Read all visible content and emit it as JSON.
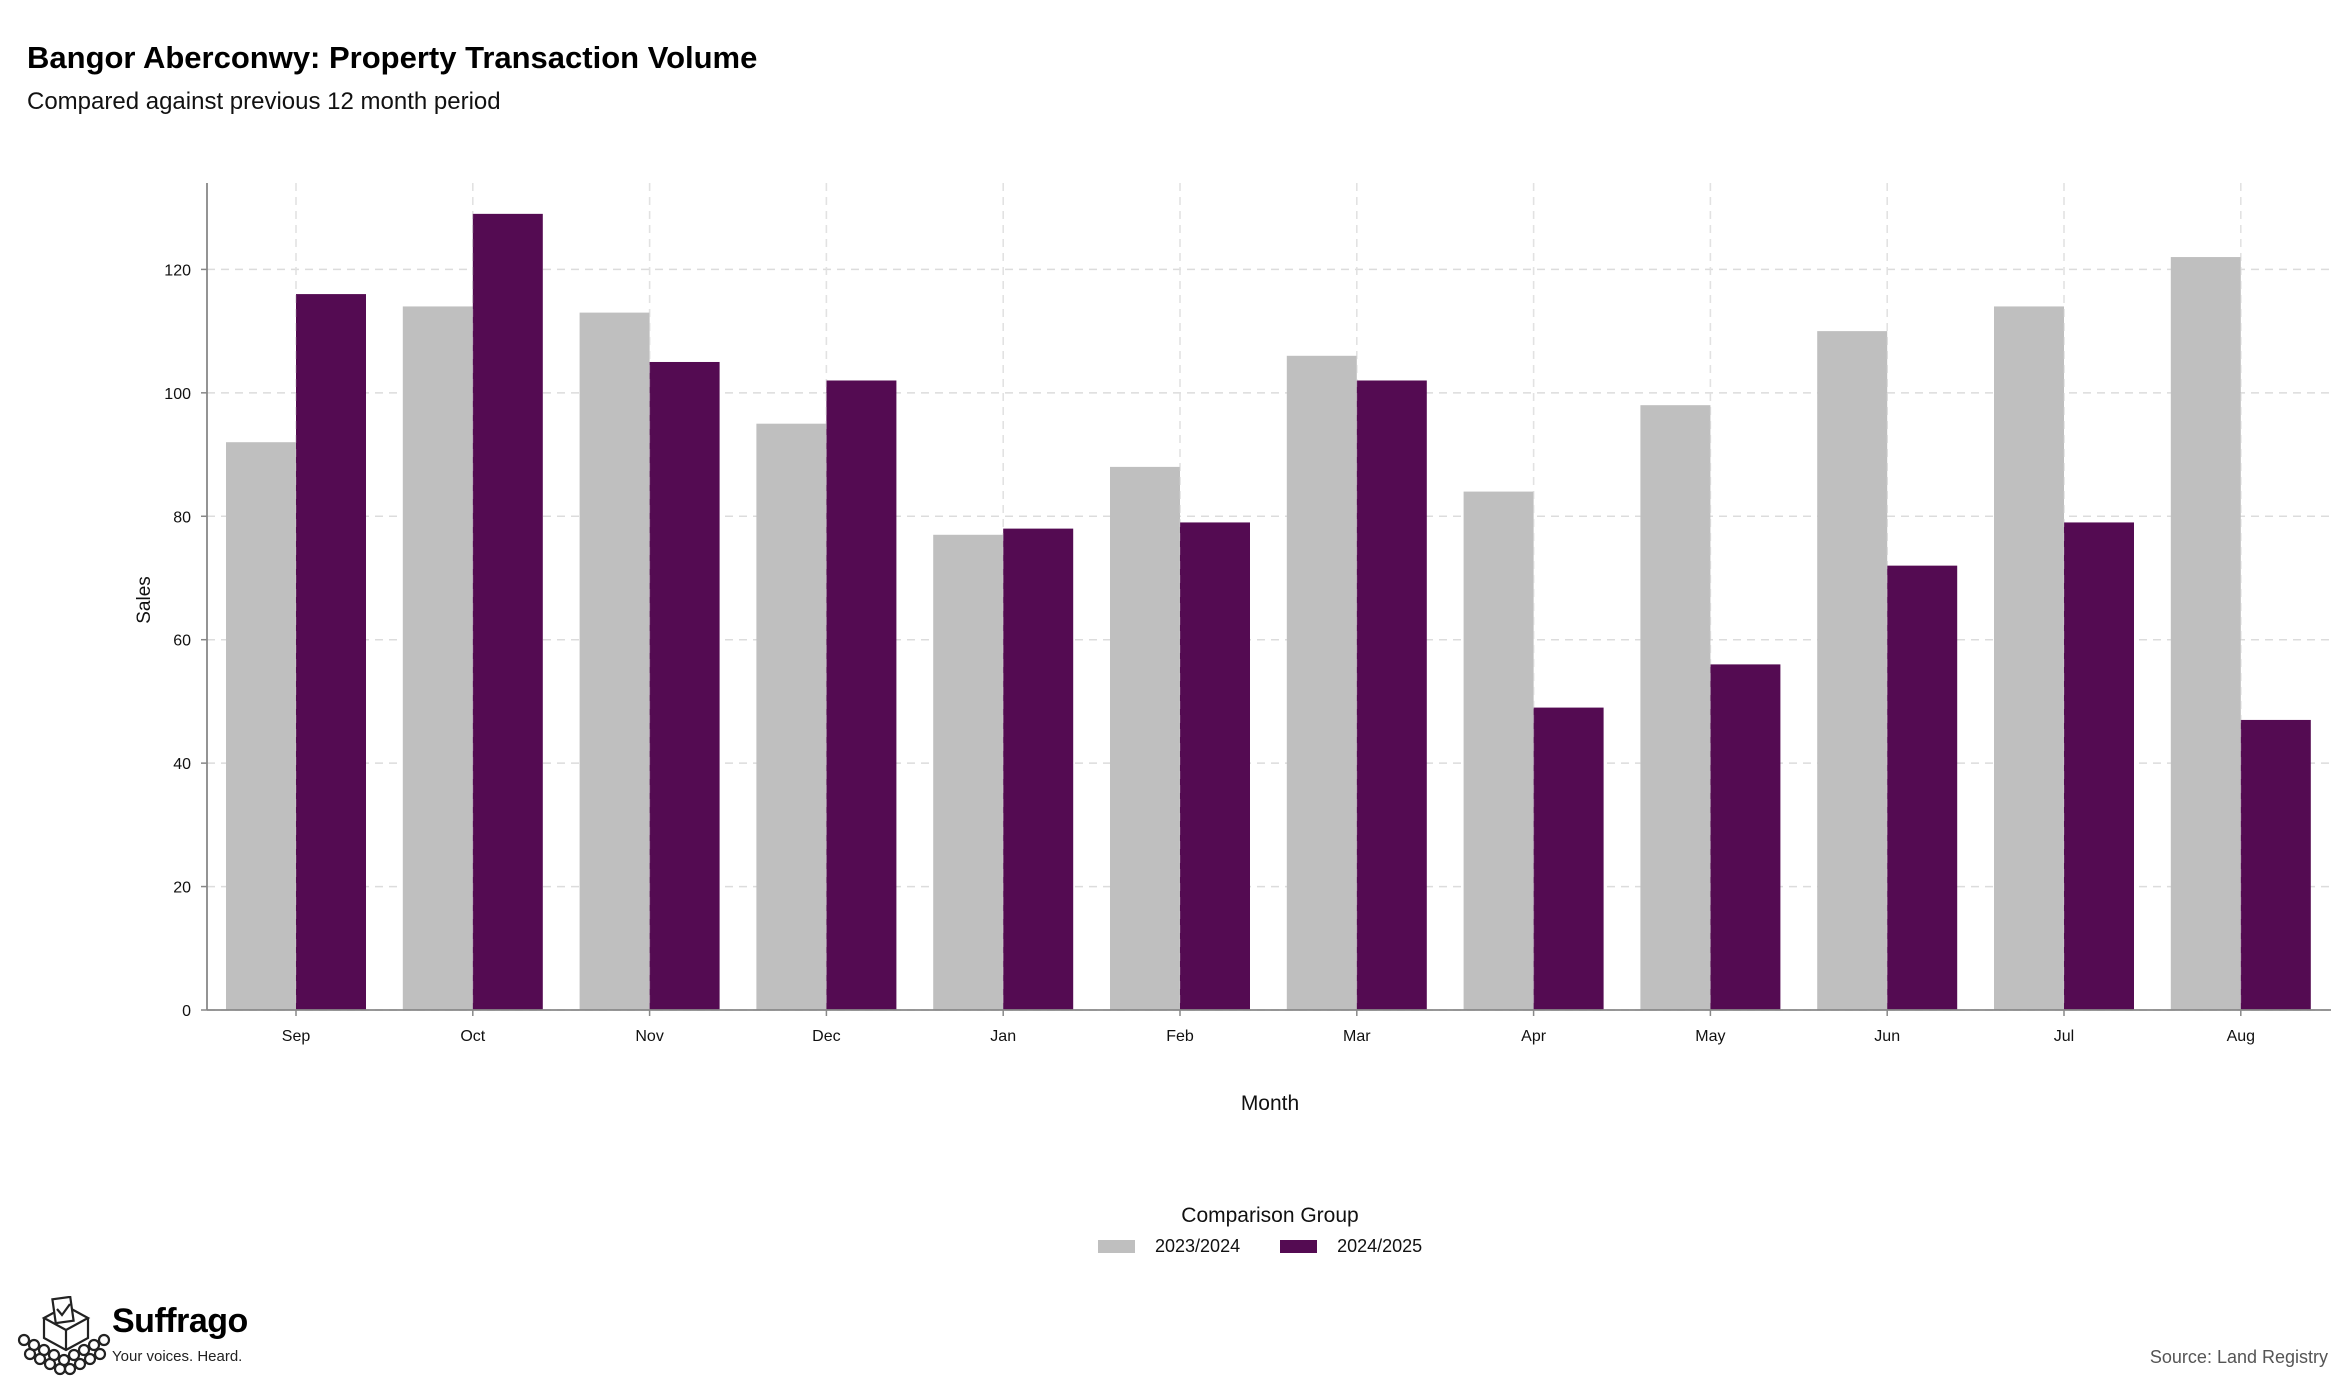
{
  "header": {
    "title": "Bangor Aberconwy: Property Transaction Volume",
    "subtitle": "Compared against previous 12 month period"
  },
  "chart_data": {
    "type": "bar",
    "title": "Bangor Aberconwy: Property Transaction Volume",
    "subtitle": "Compared against previous 12 month period",
    "xlabel": "Month",
    "ylabel": "Sales",
    "categories": [
      "Sep",
      "Oct",
      "Nov",
      "Dec",
      "Jan",
      "Feb",
      "Mar",
      "Apr",
      "May",
      "Jun",
      "Jul",
      "Aug"
    ],
    "series": [
      {
        "name": "2023/2024",
        "color": "#bfbfbf",
        "values": [
          92,
          114,
          113,
          95,
          77,
          88,
          106,
          84,
          98,
          110,
          114,
          122
        ]
      },
      {
        "name": "2024/2025",
        "color": "#540b52",
        "values": [
          116,
          129,
          105,
          102,
          78,
          79,
          102,
          49,
          56,
          72,
          79,
          47
        ]
      }
    ],
    "ylim": [
      0,
      134
    ],
    "yticks": [
      0,
      20,
      40,
      60,
      80,
      100,
      120
    ],
    "grid": true,
    "legend_title": "Comparison Group",
    "legend_position": "bottom-center"
  },
  "branding": {
    "name": "Suffrago",
    "tagline": "Your voices. Heard.",
    "logo_icon": "ballot-box-crowd-icon"
  },
  "footer": {
    "source": "Source: Land Registry"
  }
}
